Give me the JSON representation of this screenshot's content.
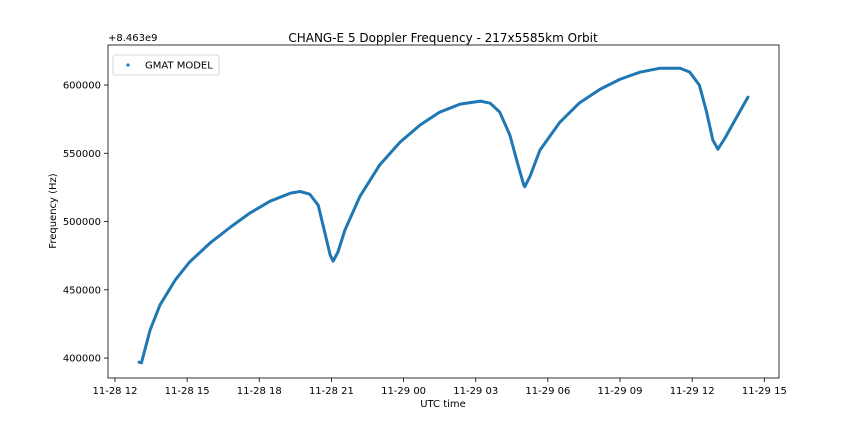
{
  "chart_data": {
    "type": "line",
    "title": "CHANG-E 5 Doppler Frequency - 217x5585km Orbit",
    "x_label": "UTC time",
    "y_label": "Frequency (Hz)",
    "y_offset_label": "+8.463e9",
    "legend_position": "upper left",
    "xlim": [
      11.71,
      39.61
    ],
    "ylim": [
      385400,
      629300
    ],
    "xticks": [
      {
        "value": 12,
        "label": "11-28 12"
      },
      {
        "value": 15,
        "label": "11-28 15"
      },
      {
        "value": 18,
        "label": "11-28 18"
      },
      {
        "value": 21,
        "label": "11-28 21"
      },
      {
        "value": 24,
        "label": "11-29 00"
      },
      {
        "value": 27,
        "label": "11-29 03"
      },
      {
        "value": 30,
        "label": "11-29 06"
      },
      {
        "value": 33,
        "label": "11-29 09"
      },
      {
        "value": 36,
        "label": "11-29 12"
      },
      {
        "value": 39,
        "label": "11-29 15"
      }
    ],
    "yticks": [
      400000,
      450000,
      500000,
      550000,
      600000
    ],
    "x": [
      13.0,
      13.1,
      13.46,
      13.87,
      14.5,
      15.1,
      15.95,
      16.8,
      17.6,
      18.45,
      19.3,
      19.7,
      20.1,
      20.45,
      20.7,
      20.95,
      21.07,
      21.27,
      21.56,
      22.19,
      23.0,
      23.85,
      24.68,
      25.5,
      26.35,
      27.2,
      27.6,
      28.0,
      28.42,
      28.76,
      29.0,
      29.04,
      29.26,
      29.67,
      30.5,
      31.3,
      32.17,
      33.0,
      33.83,
      34.66,
      35.5,
      35.9,
      36.3,
      36.6,
      36.86,
      37.07,
      37.36,
      37.78,
      38.32
    ],
    "series": [
      {
        "name": "GMAT MODEL",
        "color": "#1f77b4",
        "values": [
          397000,
          396500,
          420500,
          438800,
          457000,
          470300,
          484200,
          495900,
          506100,
          514900,
          520800,
          522000,
          520000,
          512000,
          493700,
          475400,
          471000,
          477600,
          493700,
          518600,
          541300,
          558100,
          570600,
          580100,
          586000,
          588200,
          586700,
          580100,
          563300,
          541300,
          526600,
          525500,
          533200,
          552300,
          572800,
          586700,
          596900,
          604200,
          609400,
          612300,
          612300,
          609400,
          599900,
          580100,
          559600,
          553000,
          561000,
          574300,
          591100
        ]
      }
    ]
  }
}
